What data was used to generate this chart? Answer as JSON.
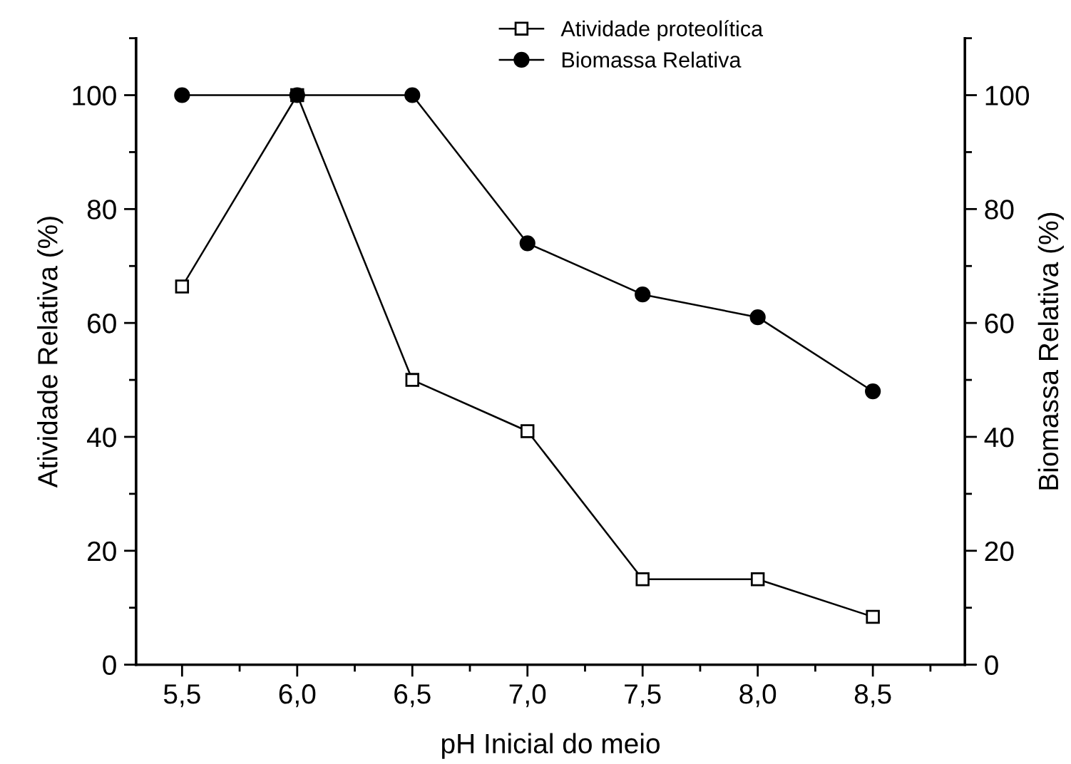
{
  "chart_data": {
    "type": "line",
    "xlabel": "pH Inicial do meio",
    "ylabel": "Atividade Relativa (%)",
    "y2label": "Biomassa Relativa (%)",
    "x": [
      5.5,
      6.0,
      6.5,
      7.0,
      7.5,
      8.0,
      8.5
    ],
    "series": [
      {
        "name": "Atividade proteolítica",
        "color": "#000000",
        "marker": "square",
        "values": [
          66.4,
          100,
          50,
          41,
          15,
          15,
          8.4
        ]
      },
      {
        "name": "Biomassa Relativa",
        "color": "#000000",
        "marker": "circle",
        "axis": "y2",
        "values": [
          100,
          100,
          100,
          74,
          65,
          61,
          48
        ]
      }
    ],
    "xlim": [
      5.3,
      8.9
    ],
    "xticks": [
      {
        "value": 5.5,
        "label": "5,5"
      },
      {
        "value": 6.0,
        "label": "6,0"
      },
      {
        "value": 6.5,
        "label": "6,5"
      },
      {
        "value": 7.0,
        "label": "7,0"
      },
      {
        "value": 7.5,
        "label": "7,5"
      },
      {
        "value": 8.0,
        "label": "8,0"
      },
      {
        "value": 8.5,
        "label": "8,5"
      }
    ],
    "ylim": [
      0,
      110
    ],
    "yticks": [
      0,
      20,
      40,
      60,
      80,
      100
    ],
    "y2lim": [
      0,
      110
    ],
    "y2ticks": [
      0,
      20,
      40,
      60,
      80,
      100
    ],
    "legend": "top right",
    "grid": false,
    "line_style": "solid"
  }
}
